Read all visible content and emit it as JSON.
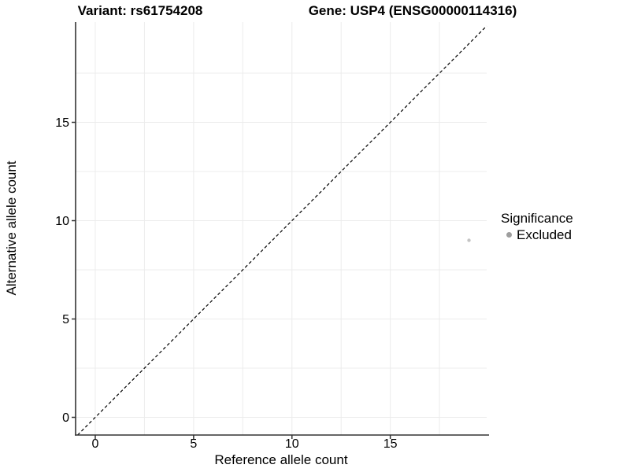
{
  "chart_data": {
    "type": "scatter",
    "titles": [
      "Variant: rs61754208",
      "Gene: USP4 (ENSG00000114316)"
    ],
    "xlabel": "Reference allele count",
    "ylabel": "Alternative allele count",
    "xlim": [
      -1,
      19.9
    ],
    "ylim": [
      -0.9,
      20.1
    ],
    "x_ticks": [
      0,
      5,
      10,
      15
    ],
    "y_ticks": [
      0,
      5,
      10,
      15
    ],
    "grid_lines": [
      0,
      2.5,
      5,
      7.5,
      10,
      12.5,
      15,
      17.5
    ],
    "grid_on": true,
    "grid_color": "#ececec",
    "axis_color": "#333333",
    "tick_color": "#333333",
    "identity_line": {
      "slope": 1,
      "intercept": 0,
      "style": "dashed",
      "color": "#000000"
    },
    "series": [
      {
        "name": "Excluded",
        "color": "#c4c4c4",
        "size": 2.2,
        "points": [
          {
            "x": 19,
            "y": 9
          }
        ]
      }
    ],
    "legend": {
      "title": "Significance",
      "position": "right",
      "items": [
        {
          "label": "Excluded",
          "color": "#9e9e9e"
        }
      ]
    }
  }
}
